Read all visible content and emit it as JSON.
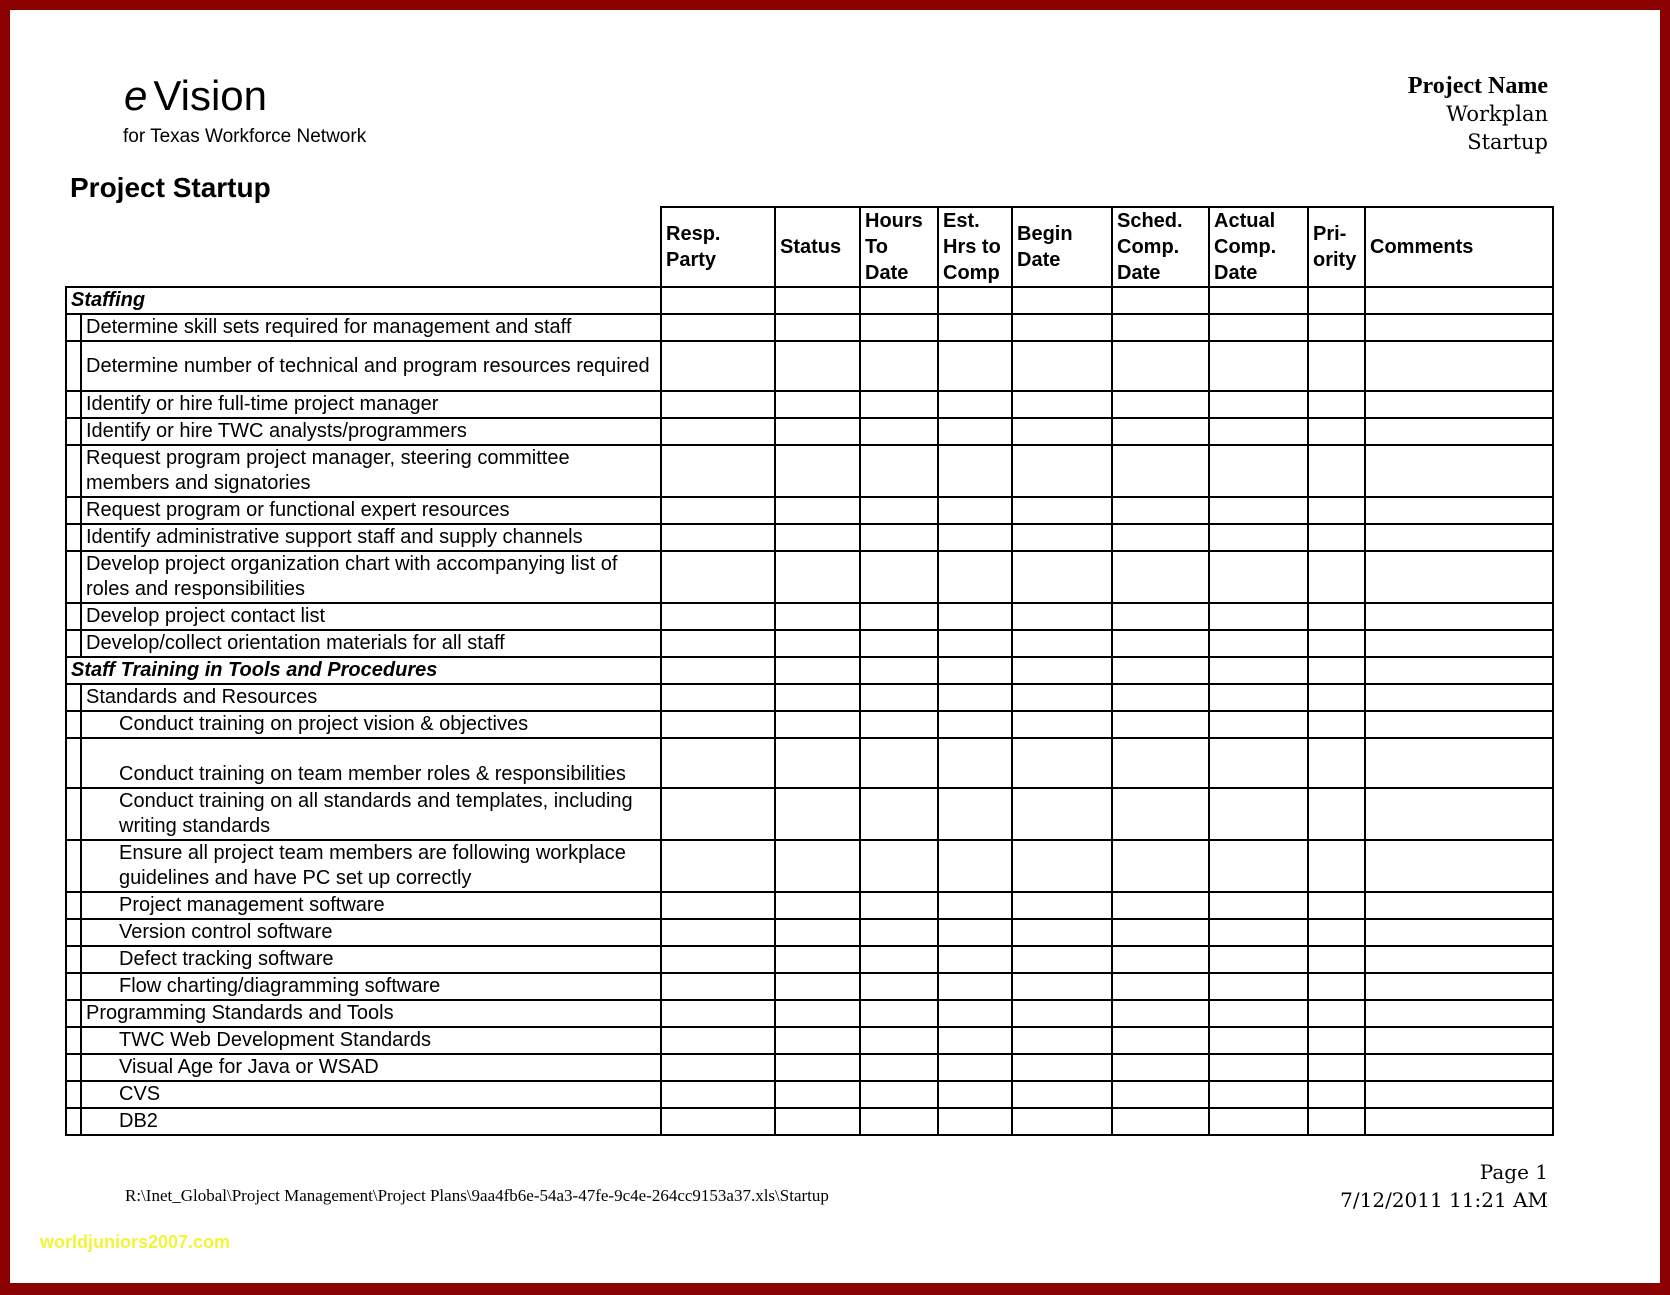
{
  "header": {
    "logo_e": "e",
    "logo_rest": "Vision",
    "subtitle": "for Texas Workforce Network",
    "project_name": "Project Name",
    "workplan": "Workplan",
    "sheet": "Startup"
  },
  "title": "Project Startup",
  "columns": [
    "Resp. Party",
    "Status",
    "Hours To Date",
    "Est. Hrs to Comp",
    "Begin Date",
    "Sched. Comp. Date",
    "Actual Comp. Date",
    "Pri- ority",
    "Comments"
  ],
  "rows": [
    {
      "text": "Staffing",
      "type": "section"
    },
    {
      "text": "Determine skill sets required for management and staff",
      "type": "l1"
    },
    {
      "text": "Determine number of technical and program resources required",
      "type": "l1",
      "tall": true
    },
    {
      "text": "Identify or hire full-time project manager",
      "type": "l1"
    },
    {
      "text": "Identify or hire TWC analysts/programmers",
      "type": "l1"
    },
    {
      "text": "Request program project manager, steering committee members and signatories",
      "type": "l1",
      "tall": true
    },
    {
      "text": "Request program or functional expert resources",
      "type": "l1"
    },
    {
      "text": "Identify administrative support staff and supply channels",
      "type": "l1"
    },
    {
      "text": "Develop project organization chart with accompanying list of roles and responsibilities",
      "type": "l1",
      "tall": true
    },
    {
      "text": "Develop project contact list",
      "type": "l1"
    },
    {
      "text": "Develop/collect orientation materials for all staff",
      "type": "l1"
    },
    {
      "text": "Staff Training in Tools and Procedures",
      "type": "section"
    },
    {
      "text": "Standards and Resources",
      "type": "l1"
    },
    {
      "text": "Conduct training on project vision & objectives",
      "type": "l2"
    },
    {
      "text": "Conduct training on team member roles & responsibilities",
      "type": "l2",
      "tall": true,
      "bottom": true
    },
    {
      "text": "Conduct training on all standards and templates, including writing standards",
      "type": "l2",
      "tall": true
    },
    {
      "text": "Ensure all project team members are following workplace guidelines and have PC set up correctly",
      "type": "l2",
      "tall": true
    },
    {
      "text": "Project management software",
      "type": "l2"
    },
    {
      "text": "Version control software",
      "type": "l2"
    },
    {
      "text": "Defect tracking software",
      "type": "l2"
    },
    {
      "text": "Flow charting/diagramming software",
      "type": "l2"
    },
    {
      "text": "Programming Standards and Tools",
      "type": "l1"
    },
    {
      "text": "TWC Web Development Standards",
      "type": "l2"
    },
    {
      "text": "Visual Age for Java or WSAD",
      "type": "l2"
    },
    {
      "text": "CVS",
      "type": "l2"
    },
    {
      "text": "DB2",
      "type": "l2"
    }
  ],
  "footer": {
    "path": "R:\\Inet_Global\\Project Management\\Project Plans\\9aa4fb6e-54a3-47fe-9c4e-264cc9153a37.xls\\Startup",
    "page": "Page 1",
    "datetime": "7/12/2011  11:21 AM"
  },
  "watermark": "worldjuniors2007.com",
  "colors": {
    "frame": "#8b0000",
    "watermark": "#f3f33a"
  }
}
